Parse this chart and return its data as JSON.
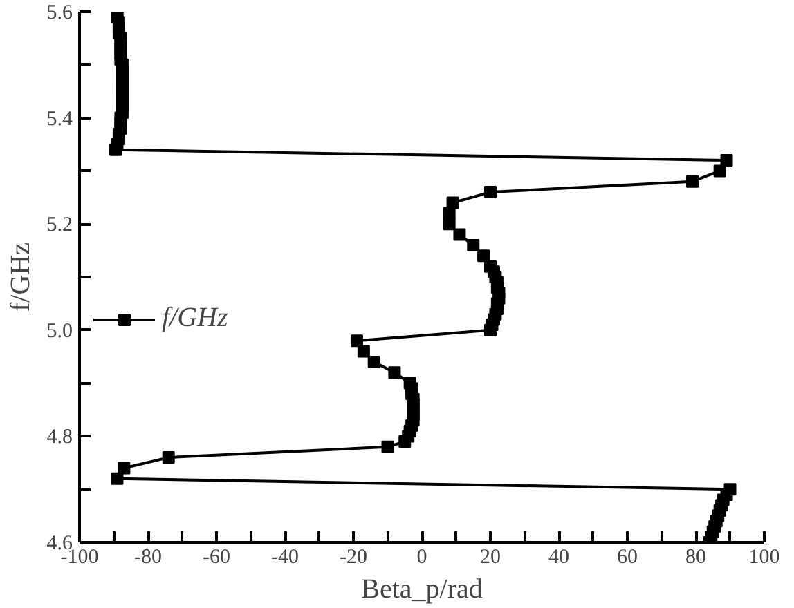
{
  "chart_data": {
    "type": "line",
    "xlabel": "Beta_p/rad",
    "ylabel": "f/GHz",
    "xlim": [
      -100,
      100
    ],
    "ylim": [
      4.6,
      5.6
    ],
    "xticks": [
      -100,
      {
        "value": -90,
        "label": null
      },
      -80,
      {
        "value": -70,
        "label": null
      },
      -60,
      {
        "value": -50,
        "label": null
      },
      -40,
      {
        "value": -30,
        "label": null
      },
      -20,
      {
        "value": -10,
        "label": null
      },
      0,
      {
        "value": 10,
        "label": null
      },
      20,
      {
        "value": 30,
        "label": null
      },
      40,
      {
        "value": 50,
        "label": null
      },
      60,
      {
        "value": 70,
        "label": null
      },
      80,
      {
        "value": 90,
        "label": null
      },
      100
    ],
    "yticks": [
      4.6,
      {
        "value": 4.7,
        "label": null
      },
      4.8,
      {
        "value": 4.9,
        "label": null
      },
      {
        "value": 5.0,
        "label": "5.0"
      },
      {
        "value": 5.1,
        "label": null
      },
      5.2,
      {
        "value": 5.3,
        "label": null
      },
      5.4,
      {
        "value": 5.5,
        "label": null
      },
      5.6
    ],
    "grid": false,
    "legend": "left",
    "marker": "square",
    "line_style": "solid",
    "series": [
      {
        "name": "f/GHz",
        "color": "#000000",
        "x": [
          84,
          84.5,
          85,
          85.5,
          86,
          86.5,
          87,
          87.5,
          88,
          89,
          90,
          -89,
          -87,
          -74,
          -10,
          -5,
          -4,
          -3.5,
          -3,
          -2.5,
          -2.5,
          -2.5,
          -2.5,
          -2.5,
          -3,
          -3,
          -3.5,
          -8,
          -14,
          -17,
          -19,
          20,
          20.5,
          21,
          21.5,
          22,
          22,
          22.5,
          22.5,
          22,
          22,
          21.5,
          21,
          20,
          18,
          15,
          11,
          8,
          8,
          9,
          20,
          79,
          87,
          89,
          -89.5,
          -89,
          -88.5,
          -88.5,
          -88,
          -88,
          -88,
          -87.5,
          -87.5,
          -87.5,
          -87.5,
          -87.5,
          -87.5,
          -87.5,
          -87.5,
          -87.5,
          -87.5,
          -88,
          -88,
          -88,
          -88,
          -88,
          -88.5,
          -88.5,
          -88.5,
          -89,
          -89
        ],
        "values": [
          4.6,
          4.61,
          4.62,
          4.63,
          4.64,
          4.65,
          4.66,
          4.67,
          4.68,
          4.69,
          4.7,
          4.72,
          4.74,
          4.76,
          4.78,
          4.79,
          4.8,
          4.81,
          4.82,
          4.83,
          4.84,
          4.85,
          4.86,
          4.87,
          4.88,
          4.89,
          4.9,
          4.92,
          4.94,
          4.96,
          4.98,
          5.0,
          5.01,
          5.02,
          5.03,
          5.04,
          5.05,
          5.06,
          5.07,
          5.08,
          5.09,
          5.1,
          5.11,
          5.12,
          5.14,
          5.16,
          5.18,
          5.2,
          5.22,
          5.24,
          5.26,
          5.28,
          5.3,
          5.32,
          5.34,
          5.35,
          5.36,
          5.37,
          5.38,
          5.39,
          5.4,
          5.41,
          5.42,
          5.43,
          5.44,
          5.45,
          5.46,
          5.47,
          5.48,
          5.49,
          5.5,
          5.51,
          5.52,
          5.53,
          5.54,
          5.55,
          5.56,
          5.57,
          5.58,
          5.59,
          5.6
        ]
      }
    ]
  }
}
